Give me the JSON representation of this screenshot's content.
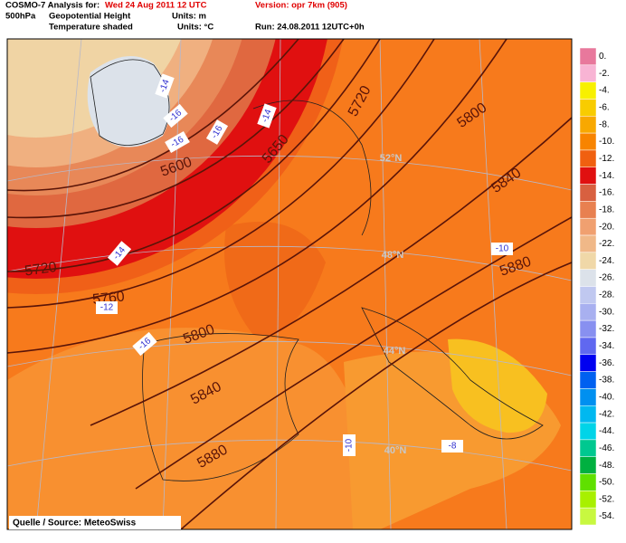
{
  "header": {
    "model_label": "COSMO-7 Analysis for:",
    "date": "Wed 24 Aug 2011 12 UTC",
    "version": "Version: opr 7km (905)",
    "level": "500hPa",
    "field1": "Geopotential Height",
    "field1_units": "Units: m",
    "field2": "Temperature shaded",
    "field2_units": "Units: °C",
    "run": "Run: 24.08.2011 12UTC+0h"
  },
  "map": {
    "height_labels": [
      "5600",
      "5650",
      "5720",
      "5720",
      "5760",
      "5800",
      "5800",
      "5840",
      "5840",
      "5880",
      "5880"
    ],
    "temperature_labels": [
      "-14",
      "-16",
      "-16",
      "-16",
      "-14",
      "-14",
      "-12",
      "-16",
      "-10",
      "-10",
      "-8"
    ],
    "latitude_labels": [
      "52°N",
      "48°N",
      "44°N",
      "40°N"
    ]
  },
  "legend": {
    "items": [
      {
        "label": "0.",
        "color": "#e8789c"
      },
      {
        "label": "-2.",
        "color": "#f8b4d4"
      },
      {
        "label": "-4.",
        "color": "#f8f000"
      },
      {
        "label": "-6.",
        "color": "#f8cc00"
      },
      {
        "label": "-8.",
        "color": "#f8a800"
      },
      {
        "label": "-10.",
        "color": "#f88400"
      },
      {
        "label": "-12.",
        "color": "#f06010"
      },
      {
        "label": "-14.",
        "color": "#e01010"
      },
      {
        "label": "-16.",
        "color": "#d86040"
      },
      {
        "label": "-18.",
        "color": "#e88050"
      },
      {
        "label": "-20.",
        "color": "#f0a070"
      },
      {
        "label": "-22.",
        "color": "#f0b888"
      },
      {
        "label": "-24.",
        "color": "#f0d8a8"
      },
      {
        "label": "-26.",
        "color": "#dce2ea"
      },
      {
        "label": "-28.",
        "color": "#c0c8f0"
      },
      {
        "label": "-30.",
        "color": "#a8b0f0"
      },
      {
        "label": "-32.",
        "color": "#8890f0"
      },
      {
        "label": "-34.",
        "color": "#6068f0"
      },
      {
        "label": "-36.",
        "color": "#0000f0"
      },
      {
        "label": "-38.",
        "color": "#0060f0"
      },
      {
        "label": "-40.",
        "color": "#0090f0"
      },
      {
        "label": "-42.",
        "color": "#00b8f0"
      },
      {
        "label": "-44.",
        "color": "#00d4e8"
      },
      {
        "label": "-46.",
        "color": "#00c890"
      },
      {
        "label": "-48.",
        "color": "#00b040"
      },
      {
        "label": "-50.",
        "color": "#60e000"
      },
      {
        "label": "-52.",
        "color": "#a8f000"
      },
      {
        "label": "-54.",
        "color": "#c8f840"
      }
    ]
  },
  "source": "Quelle / Source: MeteoSwiss"
}
